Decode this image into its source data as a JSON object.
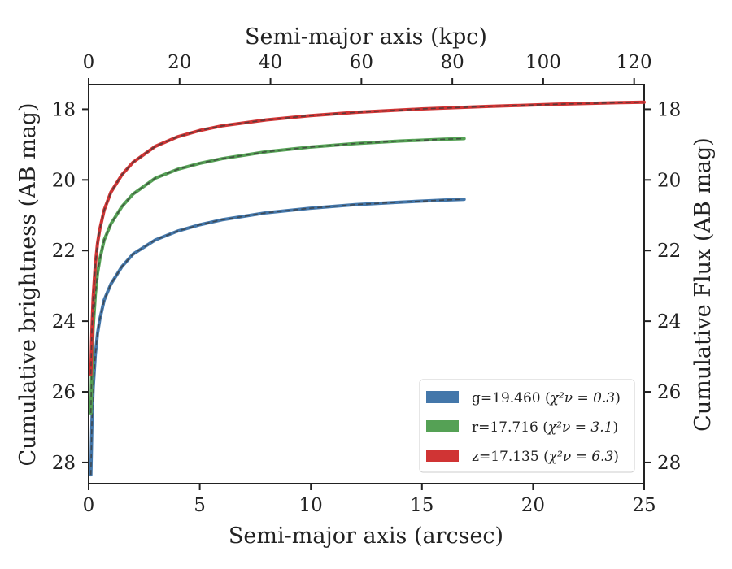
{
  "chart_data": {
    "type": "line",
    "x_label": "Semi-major axis (arcsec)",
    "x2_label": "Semi-major axis (kpc)",
    "y_label": "Cumulative brightness (AB mag)",
    "y2_label": "Cumulative Flux (AB mag)",
    "xlim": [
      0,
      25
    ],
    "ylim_inverted": [
      28.6,
      17.3
    ],
    "x2lim": [
      0,
      122.2
    ],
    "x_ticks": [
      0,
      5,
      10,
      15,
      20,
      25
    ],
    "x2_ticks": [
      0,
      20,
      40,
      60,
      80,
      100,
      120
    ],
    "y_ticks": [
      18,
      20,
      22,
      24,
      26,
      28
    ],
    "grid": false,
    "legend_position": "lower-right",
    "series": [
      {
        "name": "g=19.460",
        "chi2_label": "χ²ν = 0.3",
        "color": "#4477aa",
        "x": [
          0.1,
          0.15,
          0.2,
          0.3,
          0.4,
          0.5,
          0.7,
          1.0,
          1.5,
          2.0,
          3.0,
          4.0,
          5.0,
          6.0,
          8.0,
          10.0,
          12.0,
          14.0,
          16.0,
          16.9
        ],
        "y": [
          28.35,
          26.8,
          25.9,
          24.95,
          24.35,
          23.95,
          23.4,
          22.95,
          22.45,
          22.1,
          21.7,
          21.45,
          21.27,
          21.13,
          20.93,
          20.8,
          20.7,
          20.63,
          20.57,
          20.55
        ]
      },
      {
        "name": "r=17.716",
        "chi2_label": "χ²ν = 3.1",
        "color": "#55a155",
        "x": [
          0.1,
          0.15,
          0.2,
          0.3,
          0.4,
          0.5,
          0.7,
          1.0,
          1.5,
          2.0,
          3.0,
          4.0,
          5.0,
          6.0,
          8.0,
          10.0,
          12.0,
          14.0,
          16.0,
          16.9
        ],
        "y": [
          26.6,
          25.1,
          24.2,
          23.25,
          22.65,
          22.25,
          21.7,
          21.25,
          20.75,
          20.4,
          19.95,
          19.7,
          19.53,
          19.4,
          19.2,
          19.07,
          18.97,
          18.9,
          18.85,
          18.83
        ]
      },
      {
        "name": "z=17.135",
        "chi2_label": "χ²ν = 6.3",
        "color": "#d03434",
        "x": [
          0.1,
          0.15,
          0.2,
          0.3,
          0.4,
          0.5,
          0.7,
          1.0,
          1.5,
          2.0,
          3.0,
          4.0,
          5.0,
          6.0,
          8.0,
          10.0,
          12.0,
          15.0,
          18.0,
          21.0,
          24.0,
          25.0
        ],
        "y": [
          25.5,
          24.2,
          23.35,
          22.4,
          21.8,
          21.4,
          20.85,
          20.35,
          19.85,
          19.5,
          19.05,
          18.78,
          18.6,
          18.47,
          18.3,
          18.18,
          18.09,
          17.99,
          17.92,
          17.86,
          17.81,
          17.8
        ]
      }
    ]
  }
}
